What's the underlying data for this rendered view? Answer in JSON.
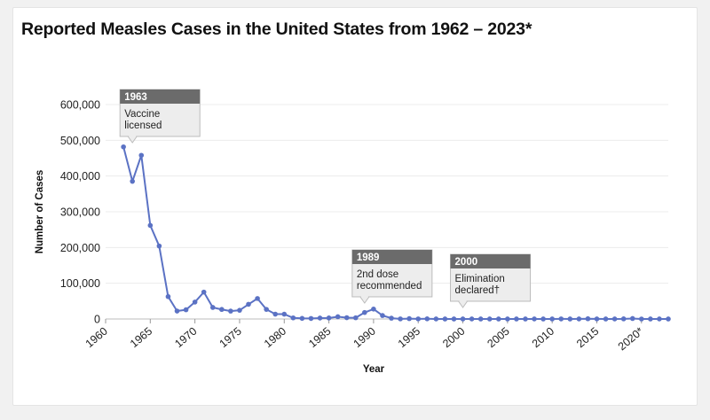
{
  "chart_data": {
    "type": "line",
    "title": "Reported Measles Cases in the United States from 1962 – 2023*",
    "xlabel": "Year",
    "ylabel": "Number of Cases",
    "xlim": [
      1960,
      2023
    ],
    "ylim": [
      0,
      600000
    ],
    "grid": true,
    "x_ticks": [
      1960,
      1965,
      1970,
      1975,
      1980,
      1985,
      1990,
      1995,
      2000,
      2005,
      2010,
      2015,
      2020
    ],
    "x_tick_labels": [
      "1960",
      "1965",
      "1970",
      "1975",
      "1980",
      "1985",
      "1990",
      "1995",
      "2000",
      "2005",
      "2010",
      "2015",
      "2020*"
    ],
    "y_ticks": [
      0,
      100000,
      200000,
      300000,
      400000,
      500000,
      600000
    ],
    "y_tick_labels": [
      "0",
      "100,000",
      "200,000",
      "300,000",
      "400,000",
      "500,000",
      "600,000"
    ],
    "series": [
      {
        "color": "#5b72c4",
        "x": [
          1962,
          1963,
          1964,
          1965,
          1966,
          1967,
          1968,
          1969,
          1970,
          1971,
          1972,
          1973,
          1974,
          1975,
          1976,
          1977,
          1978,
          1979,
          1980,
          1981,
          1982,
          1983,
          1984,
          1985,
          1986,
          1987,
          1988,
          1989,
          1990,
          1991,
          1992,
          1993,
          1994,
          1995,
          1996,
          1997,
          1998,
          1999,
          2000,
          2001,
          2002,
          2003,
          2004,
          2005,
          2006,
          2007,
          2008,
          2009,
          2010,
          2011,
          2012,
          2013,
          2014,
          2015,
          2016,
          2017,
          2018,
          2019,
          2020,
          2021,
          2022,
          2023
        ],
        "y": [
          481530,
          385156,
          458083,
          261904,
          204136,
          62705,
          22231,
          25826,
          47351,
          75290,
          32275,
          26690,
          22094,
          24374,
          41126,
          57345,
          26871,
          13597,
          13506,
          3124,
          1714,
          1497,
          2587,
          2822,
          6282,
          3655,
          3396,
          18193,
          27786,
          9643,
          2237,
          312,
          963,
          309,
          508,
          138,
          100,
          100,
          86,
          116,
          44,
          56,
          37,
          66,
          55,
          43,
          140,
          71,
          63,
          220,
          55,
          187,
          667,
          188,
          86,
          120,
          375,
          1274,
          13,
          49,
          121,
          59
        ]
      }
    ],
    "annotations": [
      {
        "x": 1963,
        "title": "1963",
        "lines": [
          "Vaccine",
          "licensed"
        ]
      },
      {
        "x": 1989,
        "title": "1989",
        "lines": [
          "2nd dose",
          "recommended"
        ]
      },
      {
        "x": 2000,
        "title": "2000",
        "lines": [
          "Elimination",
          "declared†"
        ]
      }
    ]
  }
}
